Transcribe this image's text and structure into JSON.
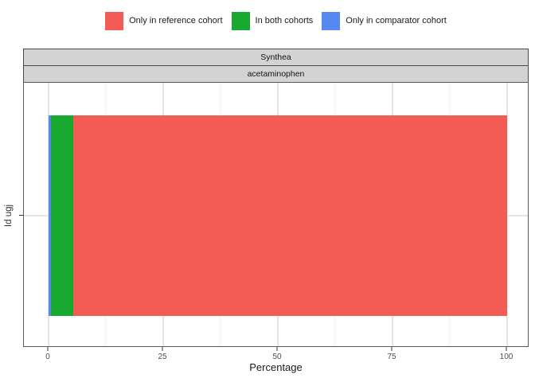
{
  "chart": {
    "facet_row_labels": [
      "Synthea",
      "acetaminophen"
    ],
    "legend": [
      {
        "label": "Only in reference cohort",
        "color": "#F25C55"
      },
      {
        "label": "In both cohorts",
        "color": "#17A930"
      },
      {
        "label": "Only in comparator cohort",
        "color": "#5688F2"
      }
    ]
  },
  "chart_data": {
    "type": "bar",
    "orientation": "horizontal",
    "stacked": true,
    "title": "",
    "facets": [
      "Synthea",
      "acetaminophen"
    ],
    "categories": [
      "Id ugj"
    ],
    "series": [
      {
        "name": "Only in comparator cohort",
        "values": [
          0.6
        ],
        "color": "#5688F2"
      },
      {
        "name": "In both cohorts",
        "values": [
          4.7
        ],
        "color": "#17A930"
      },
      {
        "name": "Only in reference cohort",
        "values": [
          94.7
        ],
        "color": "#F25C55"
      }
    ],
    "xlabel": "Percentage",
    "ylabel": "Id ugj",
    "xlim": [
      0,
      100
    ],
    "x_major_ticks": [
      0,
      25,
      50,
      75,
      100
    ],
    "x_tick_labels": [
      "0",
      "25",
      "50",
      "75",
      "100"
    ],
    "x_minor_ticks": [
      12.5,
      37.5,
      62.5,
      87.5
    ],
    "grid": true,
    "legend_position": "top"
  }
}
